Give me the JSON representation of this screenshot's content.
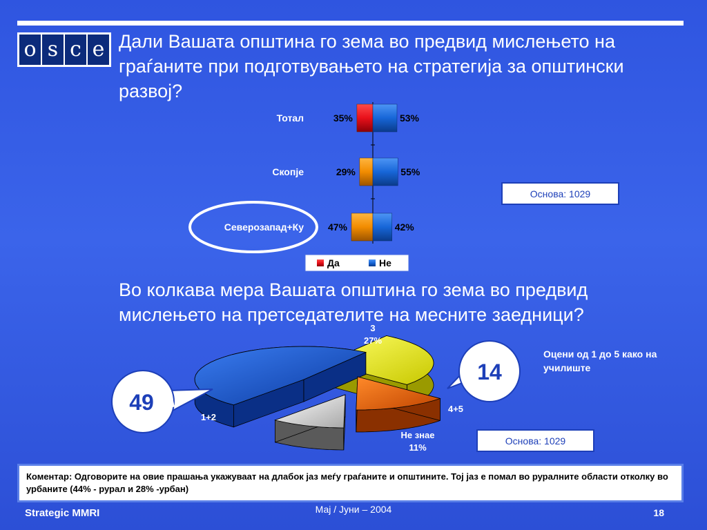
{
  "logo": {
    "letters": [
      "o",
      "s",
      "c",
      "e"
    ]
  },
  "question1": "Дали Вашата општина го зема во предвид мислењето на граѓаните при подготвувањето на стратегија за општински развој?",
  "question2": "Во колкава мера Вашата општина го зема во предвид мислењето на претседателите на месните заедници?",
  "basis1": "Основа: 1029",
  "basis2": "Основа: 1029",
  "scale_note": "Оцени од 1 до 5 како на училиште",
  "comment": "Коментар: Одговорите на овие прашања укажуваат на длабок јаз меѓу граѓаните и општините. Тој јаз е помал во руралните области отколку во урбаните (44% - рурал и 28% -урбан)",
  "footer": {
    "left": "Strategic MMRI",
    "center": "Мај / Јуни – 2004",
    "page": "18"
  },
  "colors": {
    "yes": "#e8101a",
    "no": "#1766d8",
    "orange": "#f28c00",
    "pie_yellow": "#f2f200",
    "pie_blue": "#1552c8",
    "pie_orange": "#e85a00",
    "pie_gray": "#d8d8d8"
  },
  "chart_data": [
    {
      "type": "bar",
      "orientation": "horizontal-diverging",
      "categories": [
        "Тотал",
        "Скопје",
        "Северозапад+Ку"
      ],
      "series": [
        {
          "name": "Да",
          "values": [
            35,
            29,
            47
          ]
        },
        {
          "name": "Не",
          "values": [
            53,
            55,
            42
          ]
        }
      ],
      "value_labels": {
        "Да": [
          "35%",
          "29%",
          "47%"
        ],
        "Не": [
          "53%",
          "55%",
          "42%"
        ]
      },
      "legend": [
        "Да",
        "Не"
      ],
      "legend_position": "bottom",
      "highlighted_category": "Северозапад+Ку"
    },
    {
      "type": "pie",
      "style": "3d-exploded",
      "slices": [
        {
          "label": "1+2",
          "value": 49
        },
        {
          "label": "3",
          "value": 27,
          "value_label": "27%"
        },
        {
          "label": "4+5",
          "value": 14
        },
        {
          "label": "Не знае",
          "value": 11,
          "value_label": "11%"
        }
      ],
      "callouts": [
        {
          "value": "49",
          "refers_to": "1+2"
        },
        {
          "value": "14",
          "refers_to": "4+5"
        }
      ]
    }
  ]
}
